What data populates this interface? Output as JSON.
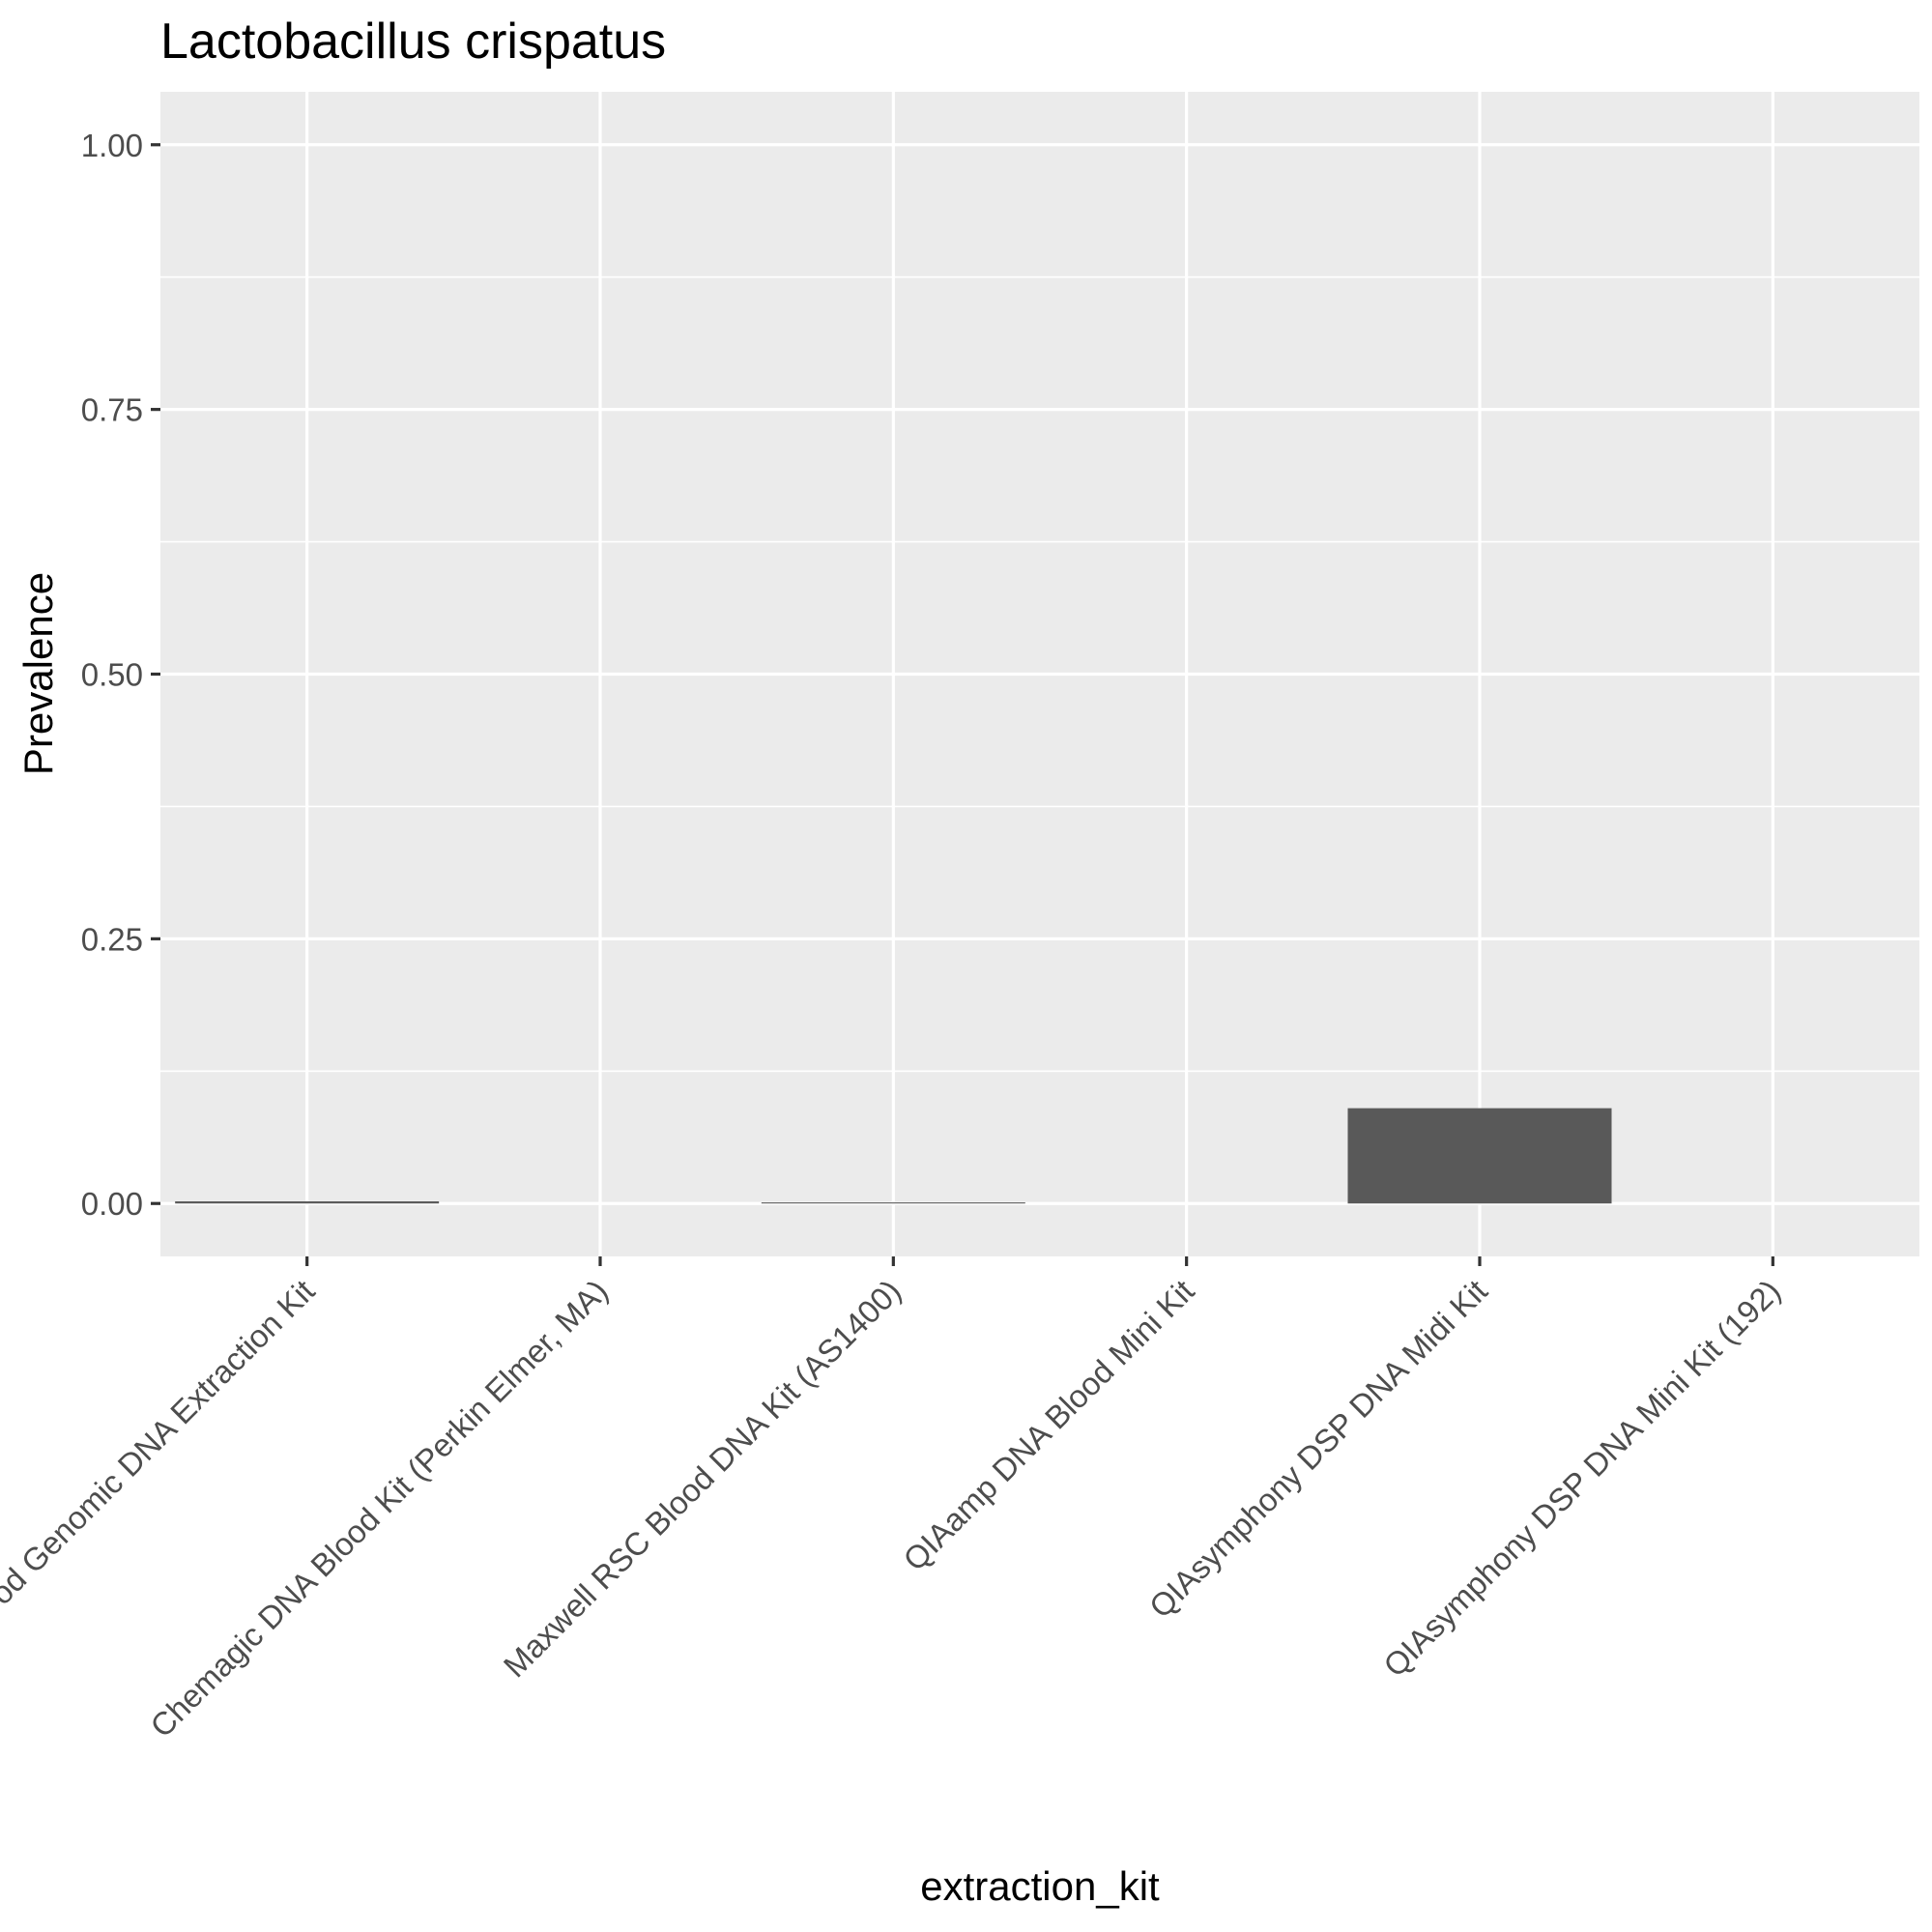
{
  "chart_data": {
    "type": "bar",
    "title": "Lactobacillus crispatus",
    "xlabel": "extraction_kit",
    "ylabel": "Prevalence",
    "categories": [
      "Blood Genomic DNA Extraction Kit",
      "Chemagic DNA Blood Kit (Perkin Elmer, MA)",
      "Maxwell RSC Blood DNA Kit (AS1400)",
      "QIAamp DNA Blood Mini Kit",
      "QIAsymphony DSP DNA Midi Kit",
      "QIAsymphony DSP DNA Mini Kit (192)"
    ],
    "values": [
      0.002,
      0,
      0.001,
      0,
      0.09,
      0
    ],
    "ylim": [
      -0.05,
      1.05
    ],
    "yticks": [
      0,
      0.25,
      0.5,
      0.75,
      1
    ],
    "ytick_labels": [
      "0.00",
      "0.25",
      "0.50",
      "0.75",
      "1.00"
    ],
    "grid": true,
    "colors": {
      "panel": "#ebebeb",
      "grid": "#ffffff",
      "bar": "#595959",
      "tick": "#333333",
      "tick_label": "#4d4d4d"
    }
  }
}
